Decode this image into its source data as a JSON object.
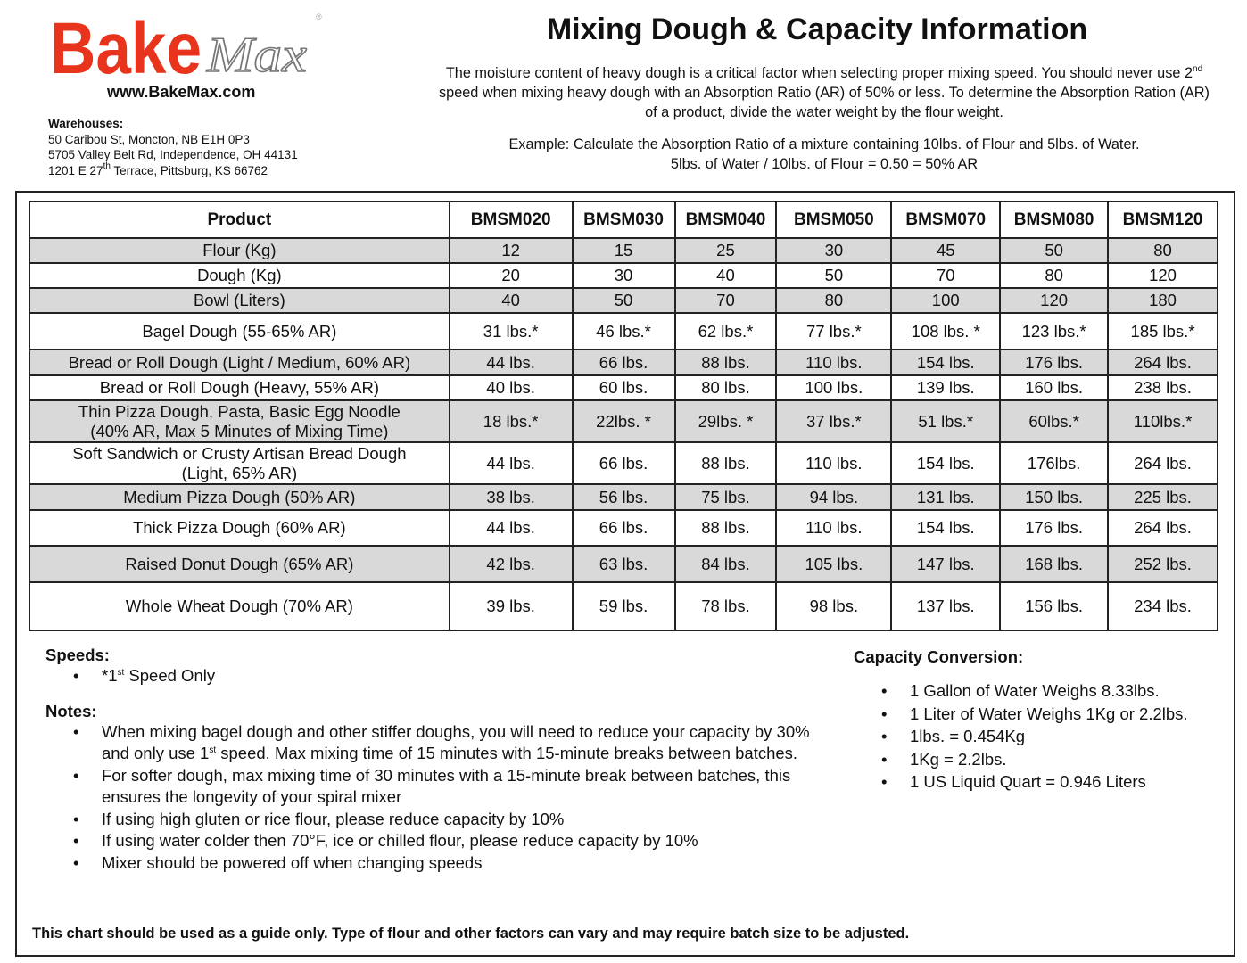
{
  "header": {
    "logo_text": "BakeMax",
    "url": "www.BakeMax.com",
    "warehouses_label": "Warehouses:",
    "warehouses": [
      "50 Caribou St, Moncton, NB E1H 0P3",
      "5705 Valley Belt Rd, Independence, OH 44131"
    ],
    "warehouse3": {
      "pre": "1201 E 27",
      "sup": "th",
      "post": " Terrace, Pittsburg, KS 66762"
    },
    "title": "Mixing Dough & Capacity Information",
    "intro": {
      "pre": "The moisture content of heavy dough is a critical factor when selecting proper mixing speed. You should never use 2",
      "sup": "nd",
      "post": " speed when mixing heavy dough with an Absorption Ratio (AR) of 50% or less. To determine the Absorption Ration (AR) of a product, divide the water weight by the flour weight."
    },
    "example1": "Example: Calculate the Absorption Ratio of a mixture containing 10lbs. of Flour and 5lbs. of Water.",
    "example2": "5lbs. of Water / 10lbs. of Flour = 0.50 = 50% AR"
  },
  "table": {
    "columns": [
      "Product",
      "BMSM020",
      "BMSM030",
      "BMSM040",
      "BMSM050",
      "BMSM070",
      "BMSM080",
      "BMSM120"
    ],
    "rows": [
      {
        "label": "Flour (Kg)",
        "values": [
          "12",
          "15",
          "25",
          "30",
          "45",
          "50",
          "80"
        ]
      },
      {
        "label": "Dough (Kg)",
        "values": [
          "20",
          "30",
          "40",
          "50",
          "70",
          "80",
          "120"
        ]
      },
      {
        "label": "Bowl (Liters)",
        "values": [
          "40",
          "50",
          "70",
          "80",
          "100",
          "120",
          "180"
        ]
      },
      {
        "label": "Bagel Dough (55-65% AR)",
        "values": [
          "31 lbs.*",
          "46 lbs.*",
          "62 lbs.*",
          "77 lbs.*",
          "108 lbs. *",
          "123 lbs.*",
          "185 lbs.*"
        ]
      },
      {
        "label": "Bread or Roll Dough (Light / Medium, 60% AR)",
        "values": [
          "44 lbs.",
          "66 lbs.",
          "88 lbs.",
          "110 lbs.",
          "154 lbs.",
          "176 lbs.",
          "264 lbs."
        ]
      },
      {
        "label": "Bread or Roll Dough (Heavy, 55% AR)",
        "values": [
          "40 lbs.",
          "60 lbs.",
          "80 lbs.",
          "100 lbs.",
          "139 lbs.",
          "160 lbs.",
          "238 lbs."
        ]
      },
      {
        "label": "Thin Pizza Dough, Pasta, Basic Egg Noodle (40% AR, Max 5 Minutes of Mixing Time)",
        "values": [
          "18 lbs.*",
          "22lbs. *",
          "29lbs. *",
          "37 lbs.*",
          "51 lbs.*",
          "60lbs.*",
          "110lbs.*"
        ]
      },
      {
        "label": "Soft Sandwich or Crusty Artisan Bread Dough (Light, 65% AR)",
        "values": [
          "44 lbs.",
          "66 lbs.",
          "88 lbs.",
          "110 lbs.",
          "154 lbs.",
          "176lbs.",
          "264 lbs."
        ]
      },
      {
        "label": "Medium Pizza Dough (50% AR)",
        "values": [
          "38 lbs.",
          "56 lbs.",
          "75 lbs.",
          "94 lbs.",
          "131 lbs.",
          "150 lbs.",
          "225 lbs."
        ]
      },
      {
        "label": "Thick Pizza Dough (60% AR)",
        "values": [
          "44 lbs.",
          "66 lbs.",
          "88 lbs.",
          "110 lbs.",
          "154 lbs.",
          "176 lbs.",
          "264 lbs."
        ]
      },
      {
        "label": "Raised Donut Dough (65% AR)",
        "values": [
          "42 lbs.",
          "63 lbs.",
          "84 lbs.",
          "105 lbs.",
          "147 lbs.",
          "168 lbs.",
          "252 lbs."
        ]
      },
      {
        "label": "Whole Wheat Dough (70% AR)",
        "values": [
          "39 lbs.",
          "59 lbs.",
          "78 lbs.",
          "98 lbs.",
          "137 lbs.",
          "156 lbs.",
          "234 lbs."
        ]
      }
    ]
  },
  "speeds": {
    "label": "Speeds:",
    "item": {
      "pre": "*1",
      "sup": "st",
      "post": " Speed Only"
    }
  },
  "notes": {
    "label": "Notes:",
    "first": {
      "pre": "When mixing bagel dough and other stiffer doughs, you will need to reduce your capacity by 30% and only use 1",
      "sup": "st",
      "post": " speed. Max mixing time of 15 minutes with 15-minute breaks between batches."
    },
    "items": [
      "For softer dough, max mixing time of 30 minutes with a 15-minute break between batches, this ensures the longevity of your spiral mixer",
      "If using high gluten or rice flour, please reduce capacity by 10%",
      "If using water colder then 70°F, ice or chilled flour, please reduce capacity by 10%",
      "Mixer should be powered off when changing speeds"
    ]
  },
  "capacity": {
    "label": "Capacity Conversion:",
    "items": [
      "1 Gallon of Water Weighs 8.33lbs.",
      "1 Liter of Water Weighs 1Kg or 2.2lbs.",
      "1lbs. = 0.454Kg",
      "1Kg = 2.2lbs.",
      "1 US Liquid Quart = 0.946 Liters"
    ]
  },
  "footer": "This chart should be used as a guide only. Type of flour and other factors can vary and may require batch size to be adjusted.",
  "colors": {
    "brand_red": "#e8341c",
    "row_shade": "#d9d9d9"
  }
}
